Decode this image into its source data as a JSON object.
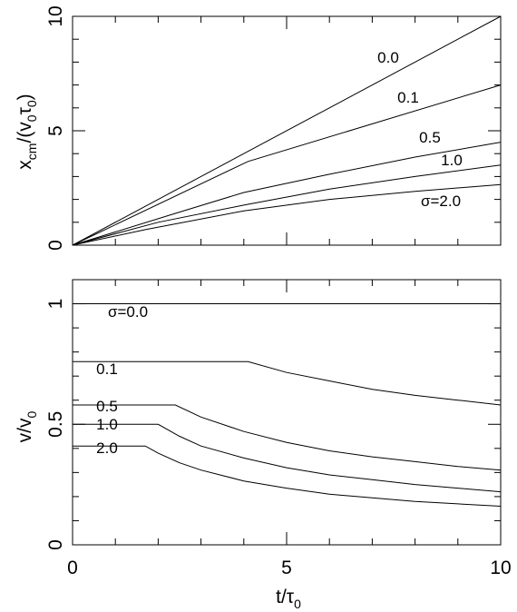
{
  "chart_data": [
    {
      "type": "line",
      "panel": "top",
      "ylabel": "x_cm/(v_0 τ_0)",
      "xlim": [
        0,
        10
      ],
      "ylim": [
        0,
        10
      ],
      "yticks": [
        "0",
        "5",
        "10"
      ],
      "series": [
        {
          "name": "0.0",
          "x": [
            0,
            10
          ],
          "y": [
            0,
            10
          ]
        },
        {
          "name": "0.1",
          "x": [
            0,
            4.1,
            10
          ],
          "y": [
            0,
            3.66,
            7.0
          ]
        },
        {
          "name": "0.5",
          "x": [
            0,
            2.4,
            4,
            6,
            8,
            10
          ],
          "y": [
            0,
            1.39,
            2.3,
            3.1,
            3.85,
            4.5
          ]
        },
        {
          "name": "1.0",
          "x": [
            0,
            2,
            4,
            6,
            8,
            10
          ],
          "y": [
            0,
            1.0,
            1.75,
            2.45,
            3.0,
            3.5
          ]
        },
        {
          "name": "σ=2.0",
          "x": [
            0,
            1.7,
            4,
            6,
            8,
            10
          ],
          "y": [
            0,
            0.68,
            1.5,
            2.0,
            2.35,
            2.65
          ]
        }
      ],
      "curve_labels": [
        "0.0",
        "0.1",
        "0.5",
        "1.0",
        "σ=2.0"
      ]
    },
    {
      "type": "line",
      "panel": "bottom",
      "xlabel": "t/τ_0",
      "ylabel": "v/v_0",
      "xlim": [
        0,
        10
      ],
      "ylim": [
        0,
        1.1
      ],
      "xticks": [
        "0",
        "5",
        "10"
      ],
      "yticks": [
        "0",
        "0.5",
        "1"
      ],
      "series": [
        {
          "name": "σ=0.0",
          "x": [
            0,
            10
          ],
          "y": [
            1.0,
            1.0
          ]
        },
        {
          "name": "0.1",
          "x": [
            0,
            4.1,
            5,
            6,
            7,
            8,
            9,
            10
          ],
          "y": [
            0.76,
            0.76,
            0.715,
            0.68,
            0.645,
            0.62,
            0.6,
            0.58
          ]
        },
        {
          "name": "0.5",
          "x": [
            0,
            2.4,
            3,
            4,
            5,
            6,
            7,
            8,
            9,
            10
          ],
          "y": [
            0.58,
            0.58,
            0.53,
            0.47,
            0.425,
            0.39,
            0.365,
            0.345,
            0.325,
            0.31
          ]
        },
        {
          "name": "1.0",
          "x": [
            0,
            2.0,
            2.5,
            3,
            4,
            5,
            6,
            7,
            8,
            9,
            10
          ],
          "y": [
            0.5,
            0.5,
            0.45,
            0.41,
            0.36,
            0.32,
            0.29,
            0.27,
            0.25,
            0.235,
            0.22
          ]
        },
        {
          "name": "2.0",
          "x": [
            0,
            1.7,
            2,
            2.5,
            3,
            4,
            5,
            6,
            7,
            8,
            9,
            10
          ],
          "y": [
            0.41,
            0.41,
            0.38,
            0.34,
            0.31,
            0.265,
            0.235,
            0.21,
            0.195,
            0.18,
            0.17,
            0.16
          ]
        }
      ],
      "curve_labels": [
        "σ=0.0",
        "0.1",
        "0.5",
        "1.0",
        "2.0"
      ]
    }
  ]
}
